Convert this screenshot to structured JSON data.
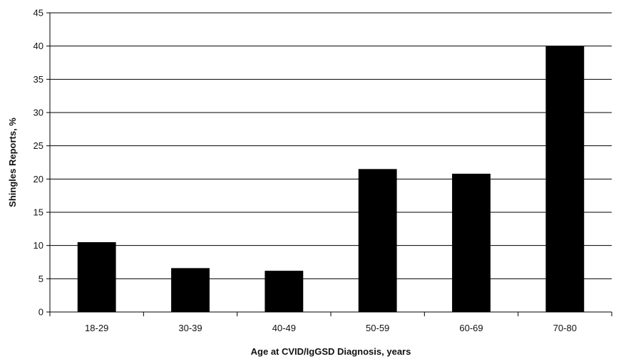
{
  "chart_data": {
    "type": "bar",
    "title": "",
    "xlabel": "Age at CVID/IgGSD Diagnosis, years",
    "ylabel": "Shingles Reports, %",
    "categories": [
      "18-29",
      "30-39",
      "40-49",
      "50-59",
      "60-69",
      "70-80"
    ],
    "values": [
      10.5,
      6.6,
      6.2,
      21.5,
      20.8,
      40.0
    ],
    "ylim": [
      0,
      45
    ],
    "yticks": [
      0,
      5,
      10,
      15,
      20,
      25,
      30,
      35,
      40,
      45
    ],
    "grid": true,
    "legend": "none",
    "bar_color": "#000000",
    "grid_color": "#000000"
  }
}
